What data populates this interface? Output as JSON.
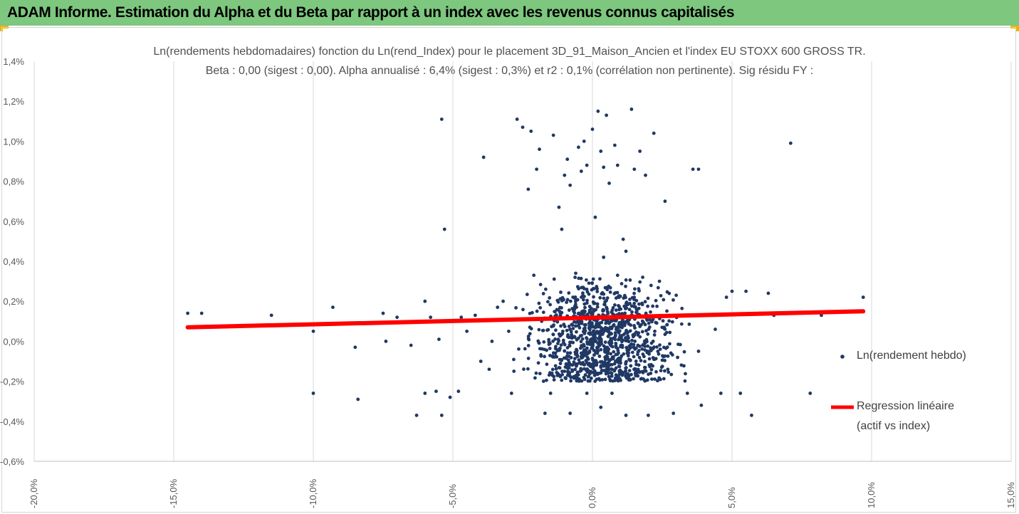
{
  "header": {
    "title": "ADAM Informe. Estimation du Alpha et du Beta par rapport à un index avec les revenus connus capitalisés"
  },
  "colors": {
    "header_bg": "#7dc77e",
    "accent": "#f0b400",
    "points": "#203864",
    "regression": "#ff0000",
    "grid": "#d9d9d9"
  },
  "chart_data": {
    "type": "scatter",
    "title": "Ln(rendements hebdomadaires) fonction du Ln(rend_Index) pour le placement 3D_91_Maison_Ancien et l'index EU STOXX 600 GROSS TR.",
    "subtitle": "Beta : 0,00 (sigest : 0,00). Alpha annualisé : 6,4% (sigest : 0,3%) et r2 : 0,1% (corrélation non pertinente). Sig résidu FY :",
    "xlim": [
      -20,
      15
    ],
    "ylim": [
      -0.6,
      1.4
    ],
    "x_ticks": [
      "-20,0%",
      "-15,0%",
      "-10,0%",
      "-5,0%",
      "0,0%",
      "5,0%",
      "10,0%",
      "15,0%"
    ],
    "y_ticks": [
      "1,4%",
      "1,2%",
      "1,0%",
      "0,8%",
      "0,6%",
      "0,4%",
      "0,2%",
      "0,0%",
      "-0,2%",
      "-0,4%",
      "-0,6%"
    ],
    "grid": "vertical",
    "legend_position": "right",
    "series": [
      {
        "name": "Ln(rendement hebdo)",
        "type": "scatter",
        "points": [
          [
            -14.5,
            0.14
          ],
          [
            -14.0,
            0.14
          ],
          [
            -11.5,
            0.13
          ],
          [
            -10.0,
            0.05
          ],
          [
            -10.0,
            -0.26
          ],
          [
            -9.3,
            0.17
          ],
          [
            -8.5,
            -0.03
          ],
          [
            -8.4,
            -0.29
          ],
          [
            -7.5,
            0.14
          ],
          [
            -7.4,
            0.0
          ],
          [
            -7.0,
            0.12
          ],
          [
            -6.5,
            -0.02
          ],
          [
            -6.3,
            -0.37
          ],
          [
            -6.0,
            -0.26
          ],
          [
            -6.0,
            0.2
          ],
          [
            -5.8,
            0.12
          ],
          [
            -5.6,
            -0.25
          ],
          [
            -5.5,
            0.01
          ],
          [
            -5.4,
            -0.37
          ],
          [
            -5.4,
            1.11
          ],
          [
            -5.3,
            0.56
          ],
          [
            -5.1,
            -0.28
          ],
          [
            -4.8,
            -0.25
          ],
          [
            -4.7,
            0.12
          ],
          [
            -4.5,
            0.05
          ],
          [
            -4.2,
            0.13
          ],
          [
            -4.0,
            -0.1
          ],
          [
            -3.9,
            0.92
          ],
          [
            -3.6,
            0.0
          ],
          [
            -3.2,
            0.2
          ],
          [
            -3.0,
            0.05
          ],
          [
            -2.7,
            1.11
          ],
          [
            -2.5,
            1.07
          ],
          [
            -2.3,
            0.76
          ],
          [
            -2.2,
            1.05
          ],
          [
            -2.0,
            0.86
          ],
          [
            -1.9,
            0.96
          ],
          [
            -1.5,
            -0.26
          ],
          [
            -1.4,
            1.03
          ],
          [
            -1.2,
            0.67
          ],
          [
            -1.1,
            0.56
          ],
          [
            -1.0,
            0.83
          ],
          [
            -0.9,
            0.91
          ],
          [
            -0.8,
            0.78
          ],
          [
            -0.5,
            0.97
          ],
          [
            -0.4,
            0.85
          ],
          [
            -0.3,
            1.0
          ],
          [
            -0.2,
            0.88
          ],
          [
            0.0,
            1.06
          ],
          [
            0.1,
            0.62
          ],
          [
            0.2,
            1.15
          ],
          [
            0.3,
            0.95
          ],
          [
            0.4,
            0.87
          ],
          [
            0.5,
            1.13
          ],
          [
            0.6,
            0.79
          ],
          [
            0.8,
            0.98
          ],
          [
            0.9,
            0.88
          ],
          [
            1.1,
            0.51
          ],
          [
            1.2,
            0.45
          ],
          [
            1.4,
            1.16
          ],
          [
            1.5,
            0.86
          ],
          [
            1.7,
            0.95
          ],
          [
            1.9,
            0.83
          ],
          [
            2.2,
            1.04
          ],
          [
            2.6,
            0.7
          ],
          [
            3.6,
            0.86
          ],
          [
            3.8,
            0.86
          ],
          [
            7.1,
            0.99
          ],
          [
            2.9,
            -0.36
          ],
          [
            3.4,
            -0.26
          ],
          [
            3.9,
            -0.32
          ],
          [
            4.6,
            -0.26
          ],
          [
            5.3,
            -0.26
          ],
          [
            5.7,
            -0.37
          ],
          [
            7.8,
            -0.26
          ],
          [
            9.7,
            0.22
          ],
          [
            8.2,
            0.13
          ],
          [
            6.3,
            0.24
          ],
          [
            5.0,
            0.25
          ],
          [
            5.5,
            0.25
          ],
          [
            4.8,
            0.22
          ],
          [
            3.0,
            0.23
          ],
          [
            2.0,
            -0.37
          ],
          [
            1.2,
            -0.37
          ],
          [
            0.3,
            -0.33
          ],
          [
            -0.8,
            -0.36
          ],
          [
            -1.7,
            -0.36
          ],
          [
            -2.9,
            -0.26
          ],
          [
            -0.6,
            0.34
          ],
          [
            0.9,
            0.33
          ],
          [
            1.8,
            0.32
          ],
          [
            -2.1,
            0.33
          ],
          [
            -3.4,
            0.17
          ],
          [
            2.4,
            0.3
          ],
          [
            0.4,
            0.42
          ],
          [
            -0.2,
            -0.26
          ],
          [
            0.7,
            -0.26
          ],
          [
            -1.0,
            -0.15
          ],
          [
            1.3,
            -0.17
          ],
          [
            3.8,
            -0.05
          ],
          [
            4.4,
            0.06
          ],
          [
            -3.7,
            -0.14
          ],
          [
            2.7,
            -0.14
          ],
          [
            6.0,
            0.14
          ],
          [
            6.5,
            0.13
          ]
        ],
        "dense_cluster": {
          "n": 1100,
          "x_range": [
            -4.5,
            4.5
          ],
          "y_range": [
            -0.2,
            0.34
          ],
          "x_center": 0.3,
          "y_center": 0.06
        }
      },
      {
        "name": "Regression linéaire (actif vs index)",
        "type": "line",
        "points": [
          [
            -14.5,
            0.07
          ],
          [
            9.7,
            0.15
          ]
        ]
      }
    ]
  },
  "legend": {
    "scatter_label": "Ln(rendement hebdo)",
    "line_label_1": "Regression linéaire",
    "line_label_2": "(actif vs index)"
  }
}
